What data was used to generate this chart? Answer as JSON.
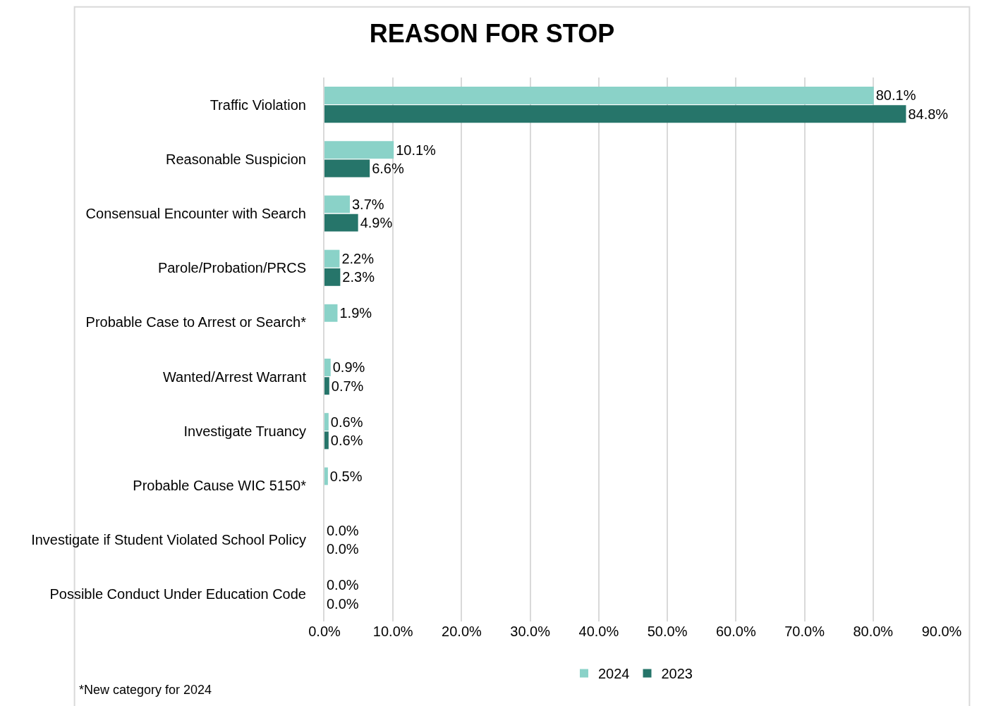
{
  "chart_data": {
    "type": "bar",
    "title": "REASON FOR STOP",
    "orientation": "horizontal",
    "categories": [
      "Traffic Violation",
      "Reasonable Suspicion",
      "Consensual Encounter with Search",
      "Parole/Probation/PRCS",
      "Probable Case to Arrest or Search*",
      "Wanted/Arrest Warrant",
      "Investigate Truancy",
      "Probable Cause WIC 5150*",
      "Investigate if Student Violated School Policy",
      "Possible Conduct Under Education Code"
    ],
    "series": [
      {
        "name": "2024",
        "color": "#8ad2c8",
        "values": [
          80.1,
          10.1,
          3.7,
          2.2,
          1.9,
          0.9,
          0.6,
          0.5,
          0.0,
          0.0
        ],
        "value_labels": [
          "80.1%",
          "10.1%",
          "3.7%",
          "2.2%",
          "1.9%",
          "0.9%",
          "0.6%",
          "0.5%",
          "0.0%",
          "0.0%"
        ]
      },
      {
        "name": "2023",
        "color": "#26756a",
        "values": [
          84.8,
          6.6,
          4.9,
          2.3,
          null,
          0.7,
          0.6,
          null,
          0.0,
          0.0
        ],
        "value_labels": [
          "84.8%",
          "6.6%",
          "4.9%",
          "2.3%",
          null,
          "0.7%",
          "0.6%",
          null,
          "0.0%",
          "0.0%"
        ]
      }
    ],
    "xlim": [
      0,
      90
    ],
    "xticks": [
      {
        "value": 0,
        "label": "0.0%"
      },
      {
        "value": 10,
        "label": "10.0%"
      },
      {
        "value": 20,
        "label": "20.0%"
      },
      {
        "value": 30,
        "label": "30.0%"
      },
      {
        "value": 40,
        "label": "40.0%"
      },
      {
        "value": 50,
        "label": "50.0%"
      },
      {
        "value": 60,
        "label": "60.0%"
      },
      {
        "value": 70,
        "label": "70.0%"
      },
      {
        "value": 80,
        "label": "80.0%"
      },
      {
        "value": 90,
        "label": "90.0%"
      }
    ],
    "grid": "x",
    "legend": "bottom",
    "annotations": [
      "*New category for 2024"
    ]
  }
}
